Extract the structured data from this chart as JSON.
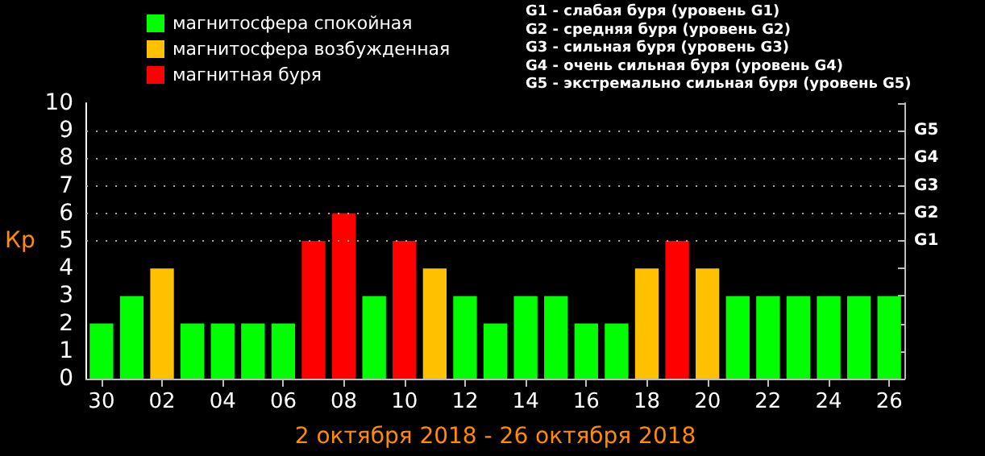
{
  "chart_data": {
    "type": "bar",
    "xlabel": "2 октября 2018 - 26 октября 2018",
    "ylabel": "Кр",
    "categories": [
      "30",
      null,
      "02",
      null,
      "04",
      null,
      "06",
      null,
      "08",
      null,
      "10",
      null,
      "12",
      null,
      "14",
      null,
      "16",
      null,
      "18",
      null,
      "20",
      null,
      "22",
      null,
      "24",
      null,
      "26"
    ],
    "series": [
      {
        "name": "магнитосфера спокойная",
        "color": "#00ff00",
        "values": [
          2,
          3,
          null,
          2,
          2,
          2,
          2,
          null,
          null,
          3,
          null,
          null,
          3,
          2,
          3,
          3,
          2,
          2,
          null,
          null,
          null,
          3,
          3,
          3,
          3,
          3,
          3
        ]
      },
      {
        "name": "магнитосфера возбужденная",
        "color": "#ffc000",
        "values": [
          null,
          null,
          4,
          null,
          null,
          null,
          null,
          null,
          null,
          null,
          null,
          4,
          null,
          null,
          null,
          null,
          null,
          null,
          4,
          null,
          4,
          null,
          null,
          null,
          null,
          null,
          null
        ]
      },
      {
        "name": "магнитная буря",
        "color": "#ff0000",
        "values": [
          null,
          null,
          null,
          null,
          null,
          null,
          null,
          5,
          6,
          null,
          5,
          null,
          null,
          null,
          null,
          null,
          null,
          null,
          null,
          5,
          null,
          null,
          null,
          null,
          null,
          null,
          null
        ]
      }
    ],
    "ylim": [
      0,
      10
    ],
    "yticks": [
      0,
      1,
      2,
      3,
      4,
      5,
      6,
      7,
      8,
      9,
      10
    ],
    "ref_lines": [
      {
        "axis": "y",
        "value": 5,
        "label": "G1",
        "color": "#aaaaaa",
        "line_style": "dotted"
      },
      {
        "axis": "y",
        "value": 6,
        "label": "G2",
        "color": "#aaaaaa",
        "line_style": "dotted"
      },
      {
        "axis": "y",
        "value": 7,
        "label": "G3",
        "color": "#aaaaaa",
        "line_style": "dotted"
      },
      {
        "axis": "y",
        "value": 8,
        "label": "G4",
        "color": "#aaaaaa",
        "line_style": "dotted"
      },
      {
        "axis": "y",
        "value": 9,
        "label": "G5",
        "color": "#aaaaaa",
        "line_style": "dotted"
      }
    ],
    "annotations": [
      "G1 - слабая буря (уровень G1)",
      "G2 - средняя буря (уровень G2)",
      "G3 - сильная буря (уровень G3)",
      "G4 - очень сильная буря (уровень G4)",
      "G5 - экстремально сильная буря (уровень G5)"
    ],
    "legend": "top left",
    "grid": false
  }
}
